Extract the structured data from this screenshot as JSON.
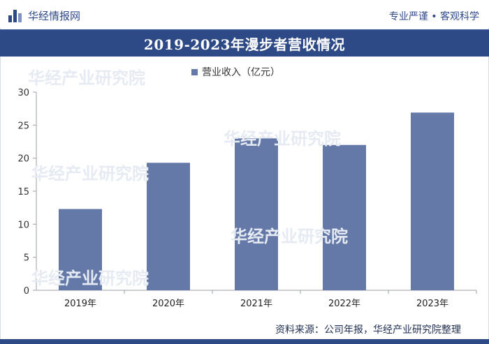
{
  "header": {
    "brand": "华经情报网",
    "slogan": "专业严谨 • 客观科学"
  },
  "title": "2019-2023年漫步者营收情况",
  "watermark": "华经产业研究院",
  "source": "资料来源：公司年报，华经产业研究院整理",
  "colors": {
    "bar": "#6479a8",
    "brand": "#2e4a86"
  },
  "chart_data": {
    "type": "bar",
    "categories": [
      "2019年",
      "2020年",
      "2021年",
      "2022年",
      "2023年"
    ],
    "series": [
      {
        "name": "营业收入（亿元）",
        "values": [
          12.3,
          19.3,
          23.0,
          22.0,
          26.9
        ]
      }
    ],
    "ylim": [
      0,
      30
    ],
    "yticks": [
      0,
      5,
      10,
      15,
      20,
      25,
      30
    ],
    "legend": "top-center",
    "grid": false
  }
}
